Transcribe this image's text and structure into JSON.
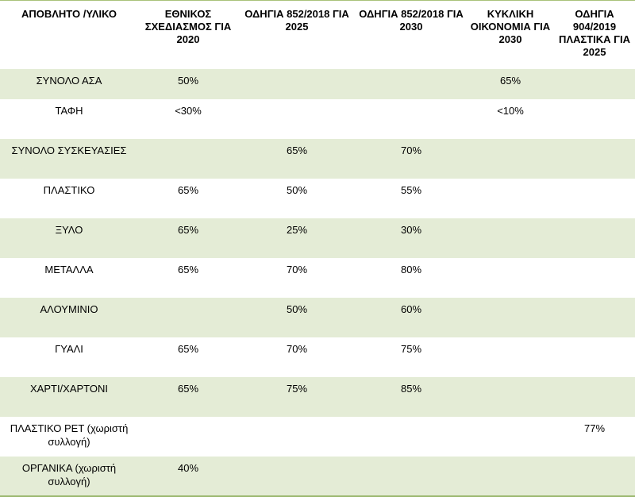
{
  "headers": [
    "ΑΠΟΒΛΗΤΟ /ΥΛΙΚΟ",
    "ΕΘΝΙΚΟΣ ΣΧΕΔΙΑΣΜΟΣ ΓΙΑ 2020",
    "ΟΔΗΓΙΑ 852/2018 ΓΙΑ 2025",
    "ΟΔΗΓΙΑ 852/2018 ΓΙΑ 2030",
    "ΚΥΚΛΙΚΗ ΟΙΚΟΝΟΜΙΑ ΓΙΑ 2030",
    "ΟΔΗΓΙΑ 904/2019 ΠΛΑΣΤΙΚΑ ΓΙΑ 2025"
  ],
  "rows": [
    [
      "ΣΥΝΟΛΟ ΑΣΑ",
      "50%",
      "",
      "",
      "65%",
      ""
    ],
    [
      "ΤΑΦΗ",
      "<30%",
      "",
      "",
      "<10%",
      ""
    ],
    [
      "ΣΥΝΟΛΟ ΣΥΣΚΕΥΑΣΙΕΣ",
      "",
      "65%",
      "70%",
      "",
      ""
    ],
    [
      "ΠΛΑΣΤΙΚΟ",
      "65%",
      "50%",
      "55%",
      "",
      ""
    ],
    [
      "ΞΥΛΟ",
      "65%",
      "25%",
      "30%",
      "",
      ""
    ],
    [
      "ΜΕΤΑΛΛΑ",
      "65%",
      "70%",
      "80%",
      "",
      ""
    ],
    [
      "ΑΛΟΥΜΙΝΙΟ",
      "",
      "50%",
      "60%",
      "",
      ""
    ],
    [
      "ΓΥΑΛΙ",
      "65%",
      "70%",
      "75%",
      "",
      ""
    ],
    [
      "ΧΑΡΤΙ/ΧΑΡΤΟΝΙ",
      "65%",
      "75%",
      "85%",
      "",
      ""
    ],
    [
      "ΠΛΑΣΤΙΚΟ PET (χωριστή συλλογή)",
      "",
      "",
      "",
      "",
      "77%"
    ],
    [
      "ΟΡΓΑΝΙΚΑ (χωριστή συλλογή)",
      "40%",
      "",
      "",
      "",
      ""
    ]
  ],
  "colors": {
    "shade": "#e4ecd6",
    "rule": "#9cb870"
  }
}
